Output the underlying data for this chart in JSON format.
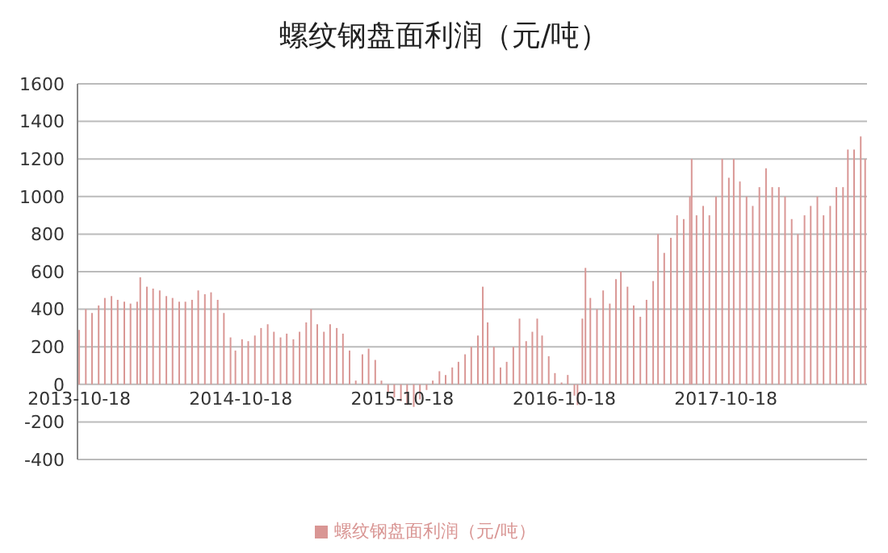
{
  "chart_data": {
    "type": "bar",
    "title": "螺纹钢盘面利润（元/吨）",
    "x": [
      "2013-10-18",
      "2013-11-02",
      "2013-11-16",
      "2013-12-01",
      "2013-12-15",
      "2013-12-30",
      "2014-01-13",
      "2014-01-28",
      "2014-02-11",
      "2014-02-26",
      "2014-03-05",
      "2014-03-20",
      "2014-04-03",
      "2014-04-18",
      "2014-05-03",
      "2014-05-17",
      "2014-06-01",
      "2014-06-15",
      "2014-06-30",
      "2014-07-14",
      "2014-07-29",
      "2014-08-12",
      "2014-08-27",
      "2014-09-10",
      "2014-09-25",
      "2014-10-06",
      "2014-10-21",
      "2014-11-04",
      "2014-11-19",
      "2014-12-03",
      "2014-12-18",
      "2015-01-01",
      "2015-01-16",
      "2015-01-30",
      "2015-02-14",
      "2015-02-28",
      "2015-03-15",
      "2015-03-26",
      "2015-04-09",
      "2015-04-24",
      "2015-05-08",
      "2015-05-23",
      "2015-06-06",
      "2015-06-21",
      "2015-07-05",
      "2015-07-20",
      "2015-08-03",
      "2015-08-18",
      "2015-09-01",
      "2015-09-16",
      "2015-09-30",
      "2015-10-15",
      "2015-10-29",
      "2015-11-13",
      "2015-11-27",
      "2015-12-12",
      "2015-12-26",
      "2016-01-10",
      "2016-01-24",
      "2016-02-08",
      "2016-02-22",
      "2016-03-08",
      "2016-03-22",
      "2016-04-06",
      "2016-04-17",
      "2016-04-28",
      "2016-05-12",
      "2016-05-27",
      "2016-06-10",
      "2016-06-25",
      "2016-07-09",
      "2016-07-24",
      "2016-08-07",
      "2016-08-18",
      "2016-08-29",
      "2016-09-13",
      "2016-09-27",
      "2016-10-12",
      "2016-10-26",
      "2016-11-10",
      "2016-11-17",
      "2016-11-28",
      "2016-12-05",
      "2016-12-16",
      "2016-12-31",
      "2017-01-14",
      "2017-01-29",
      "2017-02-12",
      "2017-02-23",
      "2017-03-10",
      "2017-03-24",
      "2017-04-08",
      "2017-04-22",
      "2017-05-07",
      "2017-05-18",
      "2017-06-01",
      "2017-06-16",
      "2017-06-30",
      "2017-07-15",
      "2017-07-29",
      "2017-08-02",
      "2017-08-13",
      "2017-08-28",
      "2017-09-11",
      "2017-09-26",
      "2017-10-10",
      "2017-10-25",
      "2017-11-05",
      "2017-11-19",
      "2017-12-04",
      "2017-12-18",
      "2018-01-02",
      "2018-01-17",
      "2018-01-31",
      "2018-02-15",
      "2018-03-01",
      "2018-03-16",
      "2018-03-30",
      "2018-04-14",
      "2018-04-28",
      "2018-05-13",
      "2018-05-27",
      "2018-06-11",
      "2018-06-25",
      "2018-07-10",
      "2018-07-21",
      "2018-08-04",
      "2018-08-19",
      "2018-08-29"
    ],
    "series": [
      {
        "name": "螺纹钢盘面利润（元/吨）",
        "color": "#d99694",
        "values": [
          290,
          400,
          380,
          420,
          460,
          470,
          450,
          440,
          430,
          440,
          570,
          520,
          510,
          500,
          470,
          460,
          440,
          440,
          450,
          500,
          480,
          490,
          450,
          380,
          250,
          180,
          240,
          230,
          260,
          300,
          320,
          280,
          250,
          270,
          240,
          280,
          330,
          400,
          320,
          280,
          320,
          300,
          270,
          180,
          20,
          160,
          190,
          130,
          20,
          -40,
          -70,
          -90,
          -110,
          -120,
          -80,
          -30,
          20,
          70,
          50,
          90,
          120,
          160,
          200,
          260,
          520,
          330,
          200,
          90,
          120,
          200,
          350,
          230,
          280,
          350,
          260,
          150,
          60,
          10,
          50,
          -60,
          -110,
          350,
          620,
          460,
          400,
          500,
          430,
          560,
          600,
          520,
          420,
          360,
          450,
          550,
          800,
          700,
          780,
          900,
          880,
          1000,
          1200,
          900,
          950,
          900,
          1000,
          1200,
          1100,
          1200,
          1080,
          1000,
          950,
          1050,
          1150,
          1050,
          1050,
          1000,
          880,
          800,
          900,
          950,
          1000,
          900,
          950,
          1050,
          1050,
          1250,
          1250,
          1320,
          1200
        ]
      }
    ],
    "xlim": [
      "2013-10-14",
      "2018-09-02"
    ],
    "xticks": [
      "2013-10-18",
      "2014-10-18",
      "2015-10-18",
      "2016-10-18",
      "2017-10-18"
    ],
    "ylim": [
      -400,
      1600
    ],
    "yticks": [
      -400,
      -200,
      0,
      200,
      400,
      600,
      800,
      1000,
      1200,
      1400,
      1600
    ],
    "grid": "y",
    "legend": "bottom"
  }
}
